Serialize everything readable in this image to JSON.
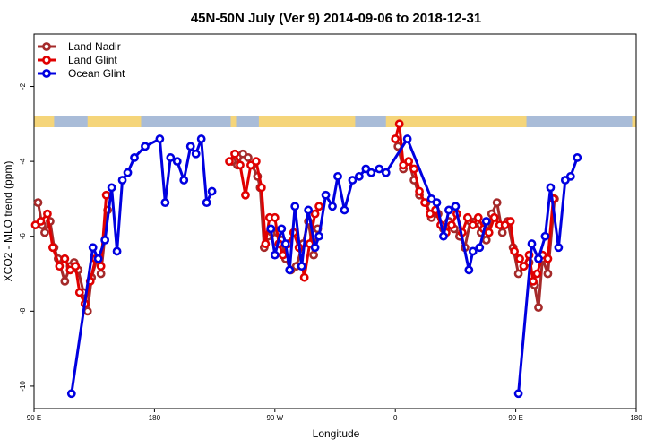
{
  "chart_data": {
    "type": "line",
    "title": "45N-50N July (Ver 9)   2014-09-06 to 2018-12-31",
    "xlabel": "Longitude",
    "ylabel": "XCO2 - MLO trend (ppm)",
    "x_ticks": [
      {
        "value": 90,
        "label": "90 E"
      },
      {
        "value": 180,
        "label": "180"
      },
      {
        "value": 270,
        "label": "90 W"
      },
      {
        "value": 360,
        "label": "0"
      },
      {
        "value": 450,
        "label": "90 E"
      },
      {
        "value": 540,
        "label": "180"
      }
    ],
    "y_ticks": [
      -10,
      -8,
      -6,
      -4,
      -2
    ],
    "xlim": [
      90,
      540
    ],
    "ylim": [
      -10.6,
      -0.6
    ],
    "grid": false,
    "legend_position": "top-left",
    "land_color": "#f5d57a",
    "ocean_color": "#a9bcd8",
    "series": [
      {
        "name": "Land Nadir",
        "color": "#a52a2a",
        "points": [
          [
            93,
            -5.1
          ],
          [
            96,
            -5.7
          ],
          [
            98,
            -5.9
          ],
          [
            102,
            -5.6
          ],
          [
            105,
            -6.3
          ],
          [
            108,
            -6.6
          ],
          [
            113,
            -7.2
          ],
          [
            117,
            -6.8
          ],
          [
            120,
            -6.7
          ],
          [
            123,
            -6.9
          ],
          [
            127,
            -7.5
          ],
          [
            130,
            -8.0
          ],
          [
            133,
            -7.1
          ],
          [
            137,
            -6.6
          ],
          [
            140,
            -7.0
          ],
          [
            145,
            -5.3
          ],
          [
            238,
            -4.0
          ],
          [
            242,
            -4.1
          ],
          [
            246,
            -3.8
          ],
          [
            250,
            -3.9
          ],
          [
            253,
            -4.1
          ],
          [
            257,
            -4.4
          ],
          [
            259,
            -4.7
          ],
          [
            262,
            -6.3
          ],
          [
            265,
            -6.0
          ],
          [
            268,
            -5.9
          ],
          [
            272,
            -5.9
          ],
          [
            275,
            -6.1
          ],
          [
            278,
            -6.6
          ],
          [
            282,
            -6.9
          ],
          [
            286,
            -6.8
          ],
          [
            291,
            -6.2
          ],
          [
            295,
            -5.6
          ],
          [
            299,
            -6.5
          ],
          [
            302,
            -5.8
          ],
          [
            362,
            -3.6
          ],
          [
            366,
            -4.2
          ],
          [
            370,
            -4.0
          ],
          [
            374,
            -4.5
          ],
          [
            378,
            -4.9
          ],
          [
            383,
            -5.1
          ],
          [
            387,
            -5.5
          ],
          [
            392,
            -5.4
          ],
          [
            396,
            -5.8
          ],
          [
            400,
            -5.6
          ],
          [
            404,
            -5.8
          ],
          [
            408,
            -6.0
          ],
          [
            412,
            -6.3
          ],
          [
            416,
            -5.6
          ],
          [
            420,
            -5.6
          ],
          [
            424,
            -5.9
          ],
          [
            428,
            -6.1
          ],
          [
            432,
            -5.4
          ],
          [
            436,
            -5.1
          ],
          [
            440,
            -5.9
          ],
          [
            444,
            -5.6
          ],
          [
            448,
            -6.3
          ],
          [
            452,
            -7.0
          ],
          [
            456,
            -6.8
          ],
          [
            460,
            -6.7
          ],
          [
            464,
            -7.3
          ],
          [
            467,
            -7.9
          ],
          [
            470,
            -6.6
          ],
          [
            474,
            -7.0
          ],
          [
            479,
            -5.0
          ]
        ]
      },
      {
        "name": "Land Glint",
        "color": "#e00000",
        "points": [
          [
            91,
            -5.7
          ],
          [
            95,
            -5.6
          ],
          [
            100,
            -5.4
          ],
          [
            104,
            -6.3
          ],
          [
            109,
            -6.8
          ],
          [
            113,
            -6.6
          ],
          [
            117,
            -6.9
          ],
          [
            121,
            -6.8
          ],
          [
            124,
            -7.5
          ],
          [
            128,
            -7.8
          ],
          [
            132,
            -7.2
          ],
          [
            136,
            -6.6
          ],
          [
            140,
            -6.8
          ],
          [
            144,
            -4.9
          ],
          [
            236,
            -4.0
          ],
          [
            240,
            -3.8
          ],
          [
            244,
            -4.1
          ],
          [
            248,
            -4.9
          ],
          [
            252,
            -4.1
          ],
          [
            256,
            -4.0
          ],
          [
            260,
            -4.7
          ],
          [
            263,
            -6.2
          ],
          [
            266,
            -5.5
          ],
          [
            270,
            -5.5
          ],
          [
            273,
            -6.2
          ],
          [
            276,
            -6.5
          ],
          [
            280,
            -6.2
          ],
          [
            284,
            -5.9
          ],
          [
            288,
            -6.3
          ],
          [
            292,
            -7.1
          ],
          [
            296,
            -6.2
          ],
          [
            300,
            -5.4
          ],
          [
            303,
            -5.2
          ],
          [
            360,
            -3.4
          ],
          [
            363,
            -3.0
          ],
          [
            366,
            -4.1
          ],
          [
            370,
            -4.0
          ],
          [
            374,
            -4.2
          ],
          [
            378,
            -4.8
          ],
          [
            382,
            -5.1
          ],
          [
            386,
            -5.4
          ],
          [
            390,
            -5.3
          ],
          [
            394,
            -5.7
          ],
          [
            398,
            -5.9
          ],
          [
            402,
            -5.7
          ],
          [
            406,
            -5.4
          ],
          [
            410,
            -5.9
          ],
          [
            414,
            -5.5
          ],
          [
            418,
            -5.7
          ],
          [
            422,
            -5.5
          ],
          [
            426,
            -5.8
          ],
          [
            430,
            -5.9
          ],
          [
            434,
            -5.5
          ],
          [
            438,
            -5.7
          ],
          [
            442,
            -5.7
          ],
          [
            446,
            -5.6
          ],
          [
            449,
            -6.4
          ],
          [
            453,
            -6.6
          ],
          [
            456,
            -6.8
          ],
          [
            460,
            -6.5
          ],
          [
            463,
            -7.2
          ],
          [
            466,
            -7.0
          ],
          [
            470,
            -6.5
          ],
          [
            474,
            -6.6
          ],
          [
            478,
            -5.0
          ]
        ]
      },
      {
        "name": "Ocean Glint",
        "color": "#0000e0",
        "points": [
          [
            118,
            -10.2
          ],
          [
            134,
            -6.3
          ],
          [
            138,
            -6.6
          ],
          [
            143,
            -6.1
          ],
          [
            148,
            -4.7
          ],
          [
            152,
            -6.4
          ],
          [
            156,
            -4.5
          ],
          [
            160,
            -4.3
          ],
          [
            165,
            -3.9
          ],
          [
            173,
            -3.6
          ],
          [
            184,
            -3.4
          ],
          [
            188,
            -5.1
          ],
          [
            192,
            -3.9
          ],
          [
            197,
            -4.0
          ],
          [
            202,
            -4.5
          ],
          [
            207,
            -3.6
          ],
          [
            211,
            -3.8
          ],
          [
            215,
            -3.4
          ],
          [
            219,
            -5.1
          ],
          [
            223,
            -4.8
          ],
          [
            267,
            -5.8
          ],
          [
            270,
            -6.5
          ],
          [
            275,
            -5.8
          ],
          [
            278,
            -6.2
          ],
          [
            281,
            -6.9
          ],
          [
            285,
            -5.2
          ],
          [
            290,
            -6.8
          ],
          [
            295,
            -5.3
          ],
          [
            300,
            -6.3
          ],
          [
            303,
            -6.0
          ],
          [
            308,
            -4.9
          ],
          [
            313,
            -5.2
          ],
          [
            317,
            -4.4
          ],
          [
            322,
            -5.3
          ],
          [
            328,
            -4.5
          ],
          [
            333,
            -4.4
          ],
          [
            338,
            -4.2
          ],
          [
            342,
            -4.3
          ],
          [
            348,
            -4.2
          ],
          [
            353,
            -4.3
          ],
          [
            369,
            -3.4
          ],
          [
            387,
            -5.0
          ],
          [
            391,
            -5.1
          ],
          [
            396,
            -6.0
          ],
          [
            400,
            -5.3
          ],
          [
            405,
            -5.2
          ],
          [
            415,
            -6.9
          ],
          [
            418,
            -6.4
          ],
          [
            423,
            -6.3
          ],
          [
            428,
            -5.6
          ],
          [
            452,
            -10.2
          ],
          [
            462,
            -6.2
          ],
          [
            467,
            -6.6
          ],
          [
            472,
            -6.0
          ],
          [
            476,
            -4.7
          ],
          [
            482,
            -6.3
          ],
          [
            487,
            -4.5
          ],
          [
            491,
            -4.4
          ],
          [
            496,
            -3.9
          ]
        ]
      }
    ]
  }
}
